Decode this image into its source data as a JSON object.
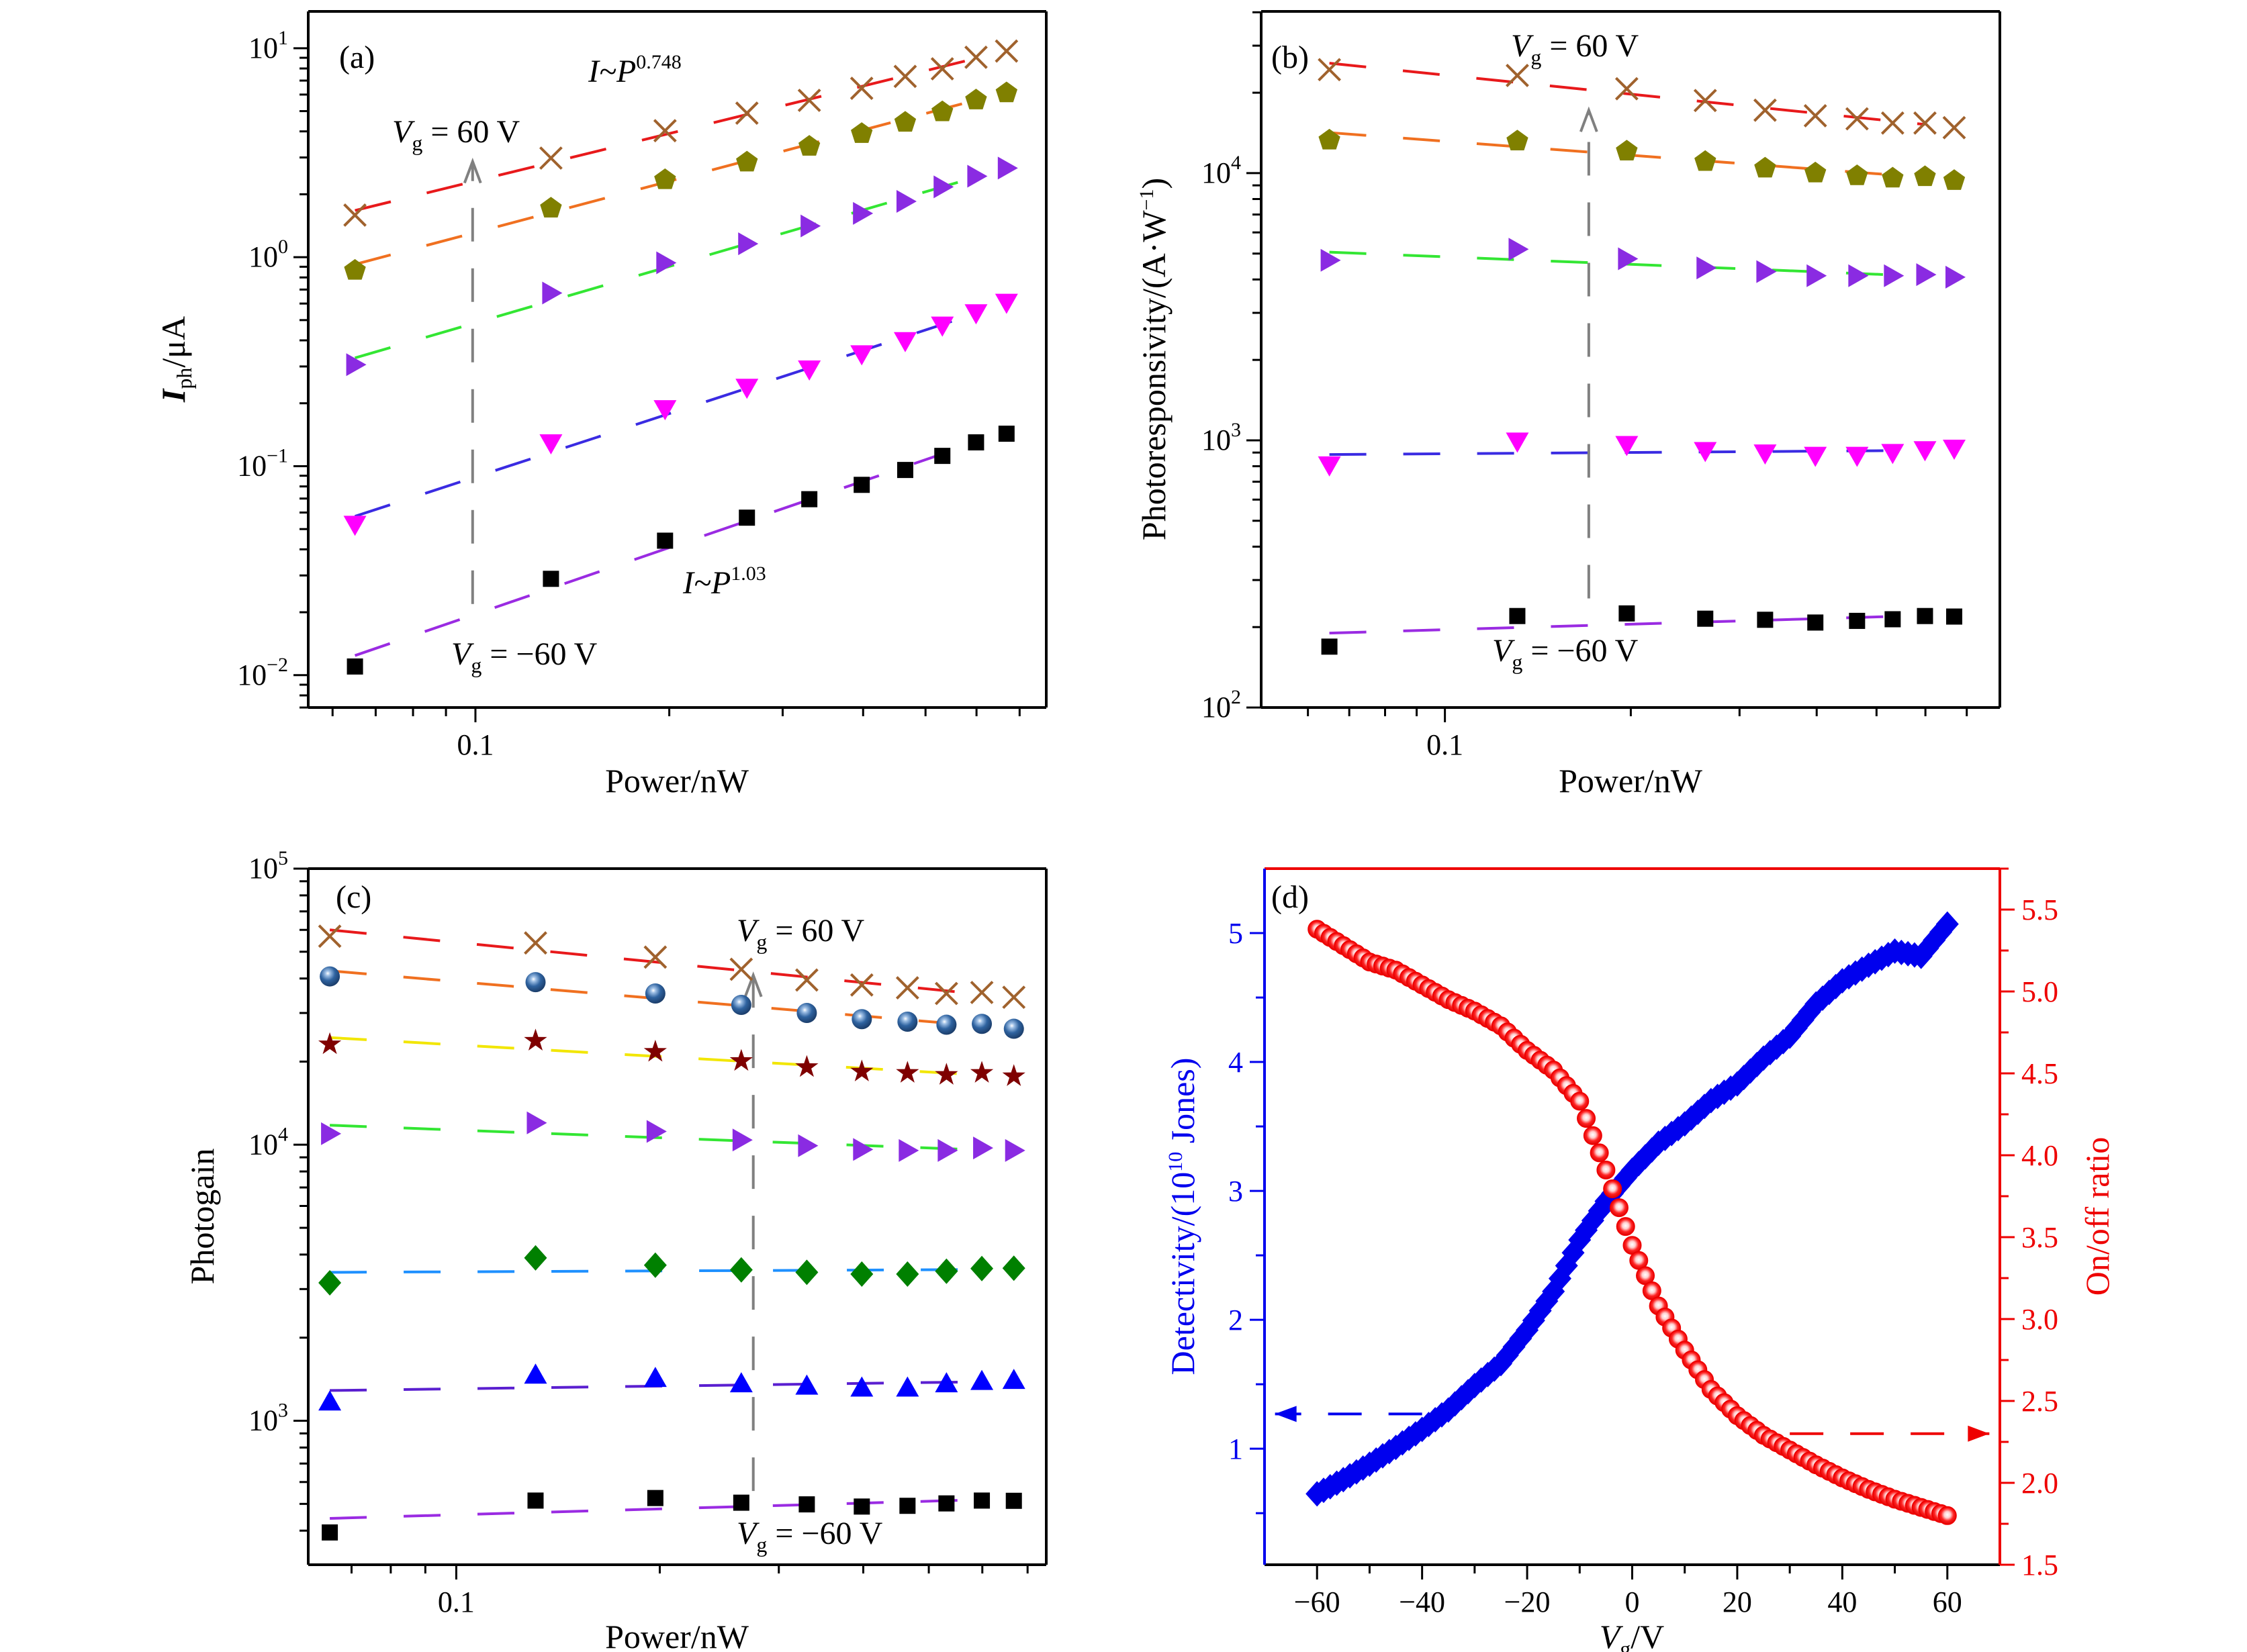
{
  "chart_data": [
    {
      "type": "scatter",
      "panel_label": "(a)",
      "xscale": "log",
      "yscale": "log",
      "xlim": [
        0.055,
        0.77
      ],
      "ylim": [
        0.007,
        15
      ],
      "xlabel": "Power/nW",
      "ylabel": {
        "var": "I",
        "sub": "ph",
        "rest": "/μA"
      },
      "xticks": [
        {
          "value": 0.1,
          "label": "0.1"
        }
      ],
      "yticks": [
        {
          "value": 0.01,
          "base": "10",
          "exp": "−2"
        },
        {
          "value": 0.1,
          "base": "10",
          "exp": "−1"
        },
        {
          "value": 1,
          "base": "10",
          "exp": "0"
        },
        {
          "value": 10,
          "base": "10",
          "exp": "1"
        }
      ],
      "x": [
        0.065,
        0.131,
        0.197,
        0.264,
        0.33,
        0.398,
        0.465,
        0.531,
        0.599,
        0.668
      ],
      "series": [
        {
          "marker": "x",
          "color": "#a0622d",
          "fit_color": "#e8191b",
          "values": [
            1.59,
            2.98,
            4.03,
            4.89,
            5.63,
            6.43,
            7.33,
            7.97,
            9.05,
            9.69
          ]
        },
        {
          "marker": "pentagon",
          "color": "#808000",
          "fit_color": "#f07020",
          "values": [
            0.877,
            1.74,
            2.38,
            2.89,
            3.44,
            3.96,
            4.48,
            5.03,
            5.73,
            6.2
          ]
        },
        {
          "marker": "triangle-right",
          "color": "#8a2be2",
          "fit_color": "#33e633",
          "values": [
            0.306,
            0.674,
            0.94,
            1.16,
            1.41,
            1.62,
            1.85,
            2.17,
            2.44,
            2.67
          ]
        },
        {
          "marker": "triangle-down",
          "color": "#ff00ff",
          "fit_color": "#3a2be2",
          "values": [
            0.0526,
            0.129,
            0.188,
            0.238,
            0.291,
            0.344,
            0.398,
            0.472,
            0.541,
            0.607
          ]
        },
        {
          "marker": "square",
          "color": "#000000",
          "fit_color": "#9a2be2",
          "values": [
            0.011,
            0.0289,
            0.044,
            0.0567,
            0.0695,
            0.0814,
            0.0959,
            0.112,
            0.13,
            0.143
          ]
        }
      ],
      "arrow": {
        "from": [
          0.099,
          0.0219
        ],
        "to": [
          0.099,
          2.87
        ],
        "color": "#808080"
      },
      "annotations": {
        "power_law_top": {
          "var": "I~P",
          "exp": "0.748"
        },
        "power_law_bottom": {
          "var": "I~P",
          "exp": "1.03"
        },
        "vg_high": {
          "var": "V",
          "sub": "g",
          "rest": " = 60 V"
        },
        "vg_low": {
          "var": "V",
          "sub": "g",
          "rest": " = −60 V"
        }
      }
    },
    {
      "type": "scatter",
      "panel_label": "(b)",
      "xscale": "log",
      "yscale": "log",
      "xlim": [
        0.0504,
        0.792
      ],
      "ylim": [
        100,
        40300
      ],
      "xlabel": "Power/nW",
      "ylabel": {
        "main": "Photoresponsivity/(A·W",
        "exp": "−1",
        "rest": ")"
      },
      "xticks": [
        {
          "value": 0.1,
          "label": "0.1"
        }
      ],
      "yticks": [
        {
          "value": 100,
          "base": "10",
          "exp": "2"
        },
        {
          "value": 1000,
          "base": "10",
          "exp": "3"
        },
        {
          "value": 10000,
          "base": "10",
          "exp": "4"
        }
      ],
      "x": [
        0.065,
        0.131,
        0.197,
        0.264,
        0.33,
        0.398,
        0.465,
        0.531,
        0.599,
        0.668
      ],
      "series": [
        {
          "marker": "x",
          "color": "#a0622d",
          "fit_color": "#e8191b",
          "values": [
            24400,
            23200,
            20700,
            18700,
            17200,
            16400,
            15970,
            15400,
            15400,
            14800
          ]
        },
        {
          "marker": "pentagon",
          "color": "#808000",
          "fit_color": "#f07020",
          "values": [
            13440,
            13330,
            12220,
            11170,
            10550,
            10120,
            9880,
            9680,
            9800,
            9480
          ]
        },
        {
          "marker": "triangle-right",
          "color": "#8a2be2",
          "fit_color": "#33e633",
          "values": [
            4720,
            5190,
            4780,
            4420,
            4280,
            4130,
            4130,
            4130,
            4170,
            4080
          ]
        },
        {
          "marker": "triangle-down",
          "color": "#ff00ff",
          "fit_color": "#3a2be2",
          "values": [
            808,
            992,
            963,
            914,
            895,
            877,
            877,
            899,
            921,
            933
          ]
        },
        {
          "marker": "square",
          "color": "#000000",
          "fit_color": "#9a2be2",
          "values": [
            169,
            220,
            225,
            215,
            213,
            208,
            211,
            214,
            220,
            219
          ]
        }
      ],
      "arrow": {
        "from": [
          0.171,
          256
        ],
        "to": [
          0.171,
          17200
        ],
        "color": "#808080"
      },
      "annotations": {
        "vg_high": {
          "var": "V",
          "sub": "g",
          "rest": " = 60 V"
        },
        "vg_low": {
          "var": "V",
          "sub": "g",
          "rest": " = −60 V"
        }
      }
    },
    {
      "type": "scatter",
      "panel_label": "(c)",
      "xscale": "log",
      "yscale": "log",
      "xlim": [
        0.0604,
        0.746
      ],
      "ylim": [
        301,
        100000
      ],
      "xlabel": "Power/nW",
      "ylabel": {
        "main": "Photogain"
      },
      "xticks": [
        {
          "value": 0.1,
          "label": "0.1"
        }
      ],
      "yticks": [
        {
          "value": 1000,
          "base": "10",
          "exp": "3"
        },
        {
          "value": 10000,
          "base": "10",
          "exp": "4"
        },
        {
          "value": 100000,
          "base": "10",
          "exp": "5"
        }
      ],
      "x": [
        0.065,
        0.131,
        0.197,
        0.264,
        0.33,
        0.398,
        0.465,
        0.531,
        0.599,
        0.668
      ],
      "series": [
        {
          "marker": "x",
          "color": "#a0622d",
          "fit_color": "#e8191b",
          "values": [
            56900,
            53800,
            47800,
            43200,
            39500,
            37900,
            37000,
            35300,
            35600,
            34200
          ]
        },
        {
          "marker": "sphere",
          "color": "#2f63a0",
          "fit_color": "#f07020",
          "values": [
            40700,
            38800,
            35300,
            32100,
            30000,
            28500,
            27900,
            27200,
            27400,
            26300
          ]
        },
        {
          "marker": "star",
          "color": "#7f0000",
          "fit_color": "#f2e600",
          "values": [
            23100,
            23800,
            21700,
            20100,
            19100,
            18400,
            18200,
            17900,
            18200,
            17700
          ]
        },
        {
          "marker": "triangle-right",
          "color": "#8a2be2",
          "fit_color": "#33e633",
          "values": [
            10960,
            12000,
            11170,
            10400,
            9920,
            9610,
            9530,
            9530,
            9730,
            9530
          ]
        },
        {
          "marker": "diamond",
          "color": "#008000",
          "fit_color": "#1e90ff",
          "values": [
            3160,
            3890,
            3660,
            3520,
            3450,
            3400,
            3400,
            3480,
            3560,
            3570
          ]
        },
        {
          "marker": "triangle-up",
          "color": "#0000ff",
          "fit_color": "#5a1fd0",
          "values": [
            1172,
            1466,
            1426,
            1364,
            1337,
            1316,
            1316,
            1364,
            1391,
            1403
          ]
        },
        {
          "marker": "square",
          "color": "#000000",
          "fit_color": "#9a2be2",
          "values": [
            394,
            514,
            525,
            505,
            498,
            489,
            492,
            502,
            514,
            513
          ]
        }
      ],
      "arrow": {
        "from": [
          0.275,
          557
        ],
        "to": [
          0.275,
          41100
        ],
        "color": "#808080"
      },
      "annotations": {
        "vg_high": {
          "var": "V",
          "sub": "g",
          "rest": " = 60 V"
        },
        "vg_low": {
          "var": "V",
          "sub": "g",
          "rest": " = −60 V"
        }
      }
    },
    {
      "type": "scatter",
      "panel_label": "(d)",
      "xscale": "linear",
      "yscale": "linear",
      "xlim": [
        -70,
        70
      ],
      "ylim": [
        0.1,
        5.5
      ],
      "ylim_right": [
        1.5,
        5.75
      ],
      "xlabel": {
        "var": "V",
        "sub": "g",
        "rest": "/V"
      },
      "ylabel": {
        "main": "Detectivity/(10",
        "exp": "10",
        "rest": " Jones)"
      },
      "ylabel_right": "On/off ratio",
      "xticks": [
        {
          "value": -60,
          "label": "−60"
        },
        {
          "value": -40,
          "label": "−40"
        },
        {
          "value": -20,
          "label": "−20"
        },
        {
          "value": 0,
          "label": "0"
        },
        {
          "value": 20,
          "label": "20"
        },
        {
          "value": 40,
          "label": "40"
        },
        {
          "value": 60,
          "label": "60"
        }
      ],
      "yticks": [
        {
          "value": 1,
          "label": "1"
        },
        {
          "value": 2,
          "label": "2"
        },
        {
          "value": 3,
          "label": "3"
        },
        {
          "value": 4,
          "label": "4"
        },
        {
          "value": 5,
          "label": "5"
        }
      ],
      "yticks_right": [
        {
          "value": 1.5,
          "label": "1.5"
        },
        {
          "value": 2.0,
          "label": "2.0"
        },
        {
          "value": 2.5,
          "label": "2.5"
        },
        {
          "value": 3.0,
          "label": "3.0"
        },
        {
          "value": 3.5,
          "label": "3.5"
        },
        {
          "value": 4.0,
          "label": "4.0"
        },
        {
          "value": 4.5,
          "label": "4.5"
        },
        {
          "value": 5.0,
          "label": "5.0"
        },
        {
          "value": 5.5,
          "label": "5.5"
        }
      ],
      "left_color": "#0000ee",
      "right_color": "#ee0000",
      "x": [
        -60,
        -55,
        -50,
        -45,
        -40,
        -35,
        -30,
        -25,
        -20,
        -15,
        -10,
        -5,
        0,
        5,
        10,
        15,
        20,
        25,
        30,
        35,
        40,
        45,
        50,
        55,
        60
      ],
      "series": [
        {
          "axis": "left",
          "marker": "diamond",
          "color": "#0000ee",
          "values": [
            0.65,
            0.76,
            0.88,
            1.01,
            1.15,
            1.3,
            1.49,
            1.66,
            1.92,
            2.22,
            2.62,
            2.92,
            3.16,
            3.37,
            3.52,
            3.7,
            3.83,
            4.03,
            4.2,
            4.45,
            4.63,
            4.75,
            4.86,
            4.82,
            5.07
          ]
        },
        {
          "axis": "right",
          "marker": "circle",
          "color": "#ee0000",
          "values": [
            5.38,
            5.28,
            5.18,
            5.13,
            5.04,
            4.95,
            4.88,
            4.79,
            4.64,
            4.52,
            4.33,
            3.91,
            3.45,
            3.08,
            2.81,
            2.57,
            2.41,
            2.29,
            2.2,
            2.11,
            2.03,
            1.96,
            1.9,
            1.85,
            1.8
          ]
        }
      ],
      "arrows": [
        {
          "axis": "left",
          "from": [
            -40,
            1.27
          ],
          "to": [
            -68,
            1.27
          ],
          "color": "#0000ee"
        },
        {
          "axis": "right",
          "from": [
            30,
            2.3
          ],
          "to": [
            68,
            2.3
          ],
          "color": "#ee0000"
        }
      ]
    }
  ]
}
